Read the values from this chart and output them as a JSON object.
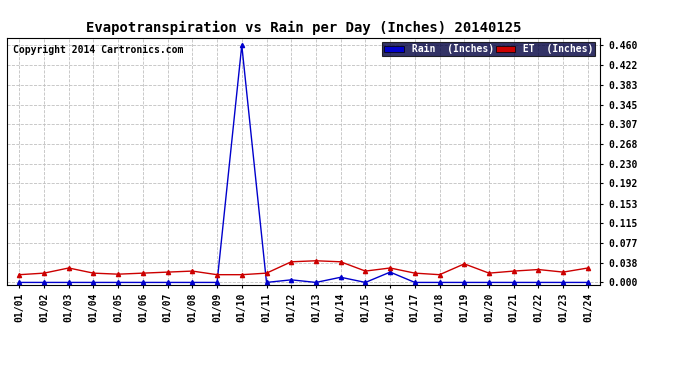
{
  "title": "Evapotranspiration vs Rain per Day (Inches) 20140125",
  "copyright": "Copyright 2014 Cartronics.com",
  "background_color": "#ffffff",
  "plot_bg_color": "#ffffff",
  "grid_color": "#c0c0c0",
  "x_labels": [
    "01/01",
    "01/02",
    "01/03",
    "01/04",
    "01/05",
    "01/06",
    "01/07",
    "01/08",
    "01/09",
    "01/10",
    "01/11",
    "01/12",
    "01/13",
    "01/14",
    "01/15",
    "01/16",
    "01/17",
    "01/18",
    "01/19",
    "01/20",
    "01/21",
    "01/22",
    "01/23",
    "01/24"
  ],
  "rain_data": [
    0.0,
    0.0,
    0.0,
    0.0,
    0.0,
    0.0,
    0.0,
    0.0,
    0.0,
    0.46,
    0.0,
    0.005,
    0.0,
    0.01,
    0.0,
    0.02,
    0.0,
    0.0,
    0.0,
    0.0,
    0.0,
    0.0,
    0.0,
    0.0
  ],
  "et_data": [
    0.015,
    0.018,
    0.028,
    0.018,
    0.016,
    0.018,
    0.02,
    0.022,
    0.015,
    0.015,
    0.018,
    0.04,
    0.042,
    0.04,
    0.022,
    0.028,
    0.018,
    0.015,
    0.036,
    0.018,
    0.022,
    0.025,
    0.02,
    0.028
  ],
  "rain_color": "#0000cc",
  "et_color": "#cc0000",
  "legend_rain_bg": "#0000cc",
  "legend_et_bg": "#cc0000",
  "yticks": [
    0.0,
    0.038,
    0.077,
    0.115,
    0.153,
    0.192,
    0.23,
    0.268,
    0.307,
    0.345,
    0.383,
    0.422,
    0.46
  ],
  "ymax": 0.475,
  "marker": "^",
  "marker_size": 3,
  "title_fontsize": 10,
  "copyright_fontsize": 7,
  "tick_fontsize": 7,
  "ytick_fontsize": 7
}
